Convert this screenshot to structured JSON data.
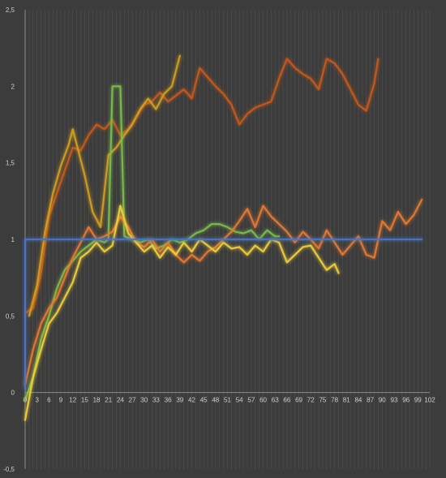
{
  "chart_data": {
    "type": "line",
    "title": "",
    "xlabel": "",
    "ylabel": "",
    "grid": true,
    "legend": "none",
    "xlim": [
      0,
      102
    ],
    "ylim": [
      -0.5,
      2.5
    ],
    "x_ticks": [
      0,
      3,
      6,
      9,
      12,
      15,
      18,
      21,
      24,
      27,
      30,
      33,
      36,
      39,
      42,
      45,
      48,
      51,
      54,
      57,
      60,
      63,
      66,
      69,
      72,
      75,
      78,
      81,
      84,
      87,
      90,
      93,
      96,
      99,
      102
    ],
    "y_ticks": [
      {
        "value": -0.5,
        "label": "-0,5"
      },
      {
        "value": 0,
        "label": "0"
      },
      {
        "value": 0.5,
        "label": "0,5"
      },
      {
        "value": 1,
        "label": "1"
      },
      {
        "value": 1.5,
        "label": "1,5"
      },
      {
        "value": 2,
        "label": "2"
      },
      {
        "value": 2.5,
        "label": "2,5"
      }
    ],
    "series": [
      {
        "color": "#c85a1a",
        "points": [
          [
            0,
            0.52
          ],
          [
            2,
            0.55
          ],
          [
            4,
            0.78
          ],
          [
            6,
            1.15
          ],
          [
            8,
            1.3
          ],
          [
            10,
            1.45
          ],
          [
            12,
            1.6
          ],
          [
            14,
            1.58
          ],
          [
            16,
            1.68
          ],
          [
            18,
            1.75
          ],
          [
            20,
            1.72
          ],
          [
            22,
            1.78
          ],
          [
            24,
            1.68
          ],
          [
            26,
            1.72
          ],
          [
            28,
            1.8
          ],
          [
            30,
            1.88
          ],
          [
            32,
            1.9
          ],
          [
            34,
            1.96
          ],
          [
            36,
            1.9
          ],
          [
            38,
            1.94
          ],
          [
            40,
            1.98
          ],
          [
            42,
            1.92
          ],
          [
            44,
            2.12
          ],
          [
            46,
            2.06
          ],
          [
            48,
            2.0
          ],
          [
            50,
            1.95
          ],
          [
            52,
            1.88
          ],
          [
            54,
            1.75
          ],
          [
            56,
            1.82
          ],
          [
            58,
            1.86
          ],
          [
            60,
            1.88
          ],
          [
            62,
            1.9
          ],
          [
            64,
            2.05
          ],
          [
            66,
            2.18
          ],
          [
            68,
            2.12
          ],
          [
            70,
            2.08
          ],
          [
            72,
            2.05
          ],
          [
            74,
            1.98
          ],
          [
            76,
            2.18
          ],
          [
            78,
            2.15
          ],
          [
            80,
            2.08
          ],
          [
            82,
            1.98
          ],
          [
            84,
            1.88
          ],
          [
            86,
            1.84
          ],
          [
            88,
            2.02
          ],
          [
            89,
            2.18
          ]
        ]
      },
      {
        "color": "#d4a020",
        "points": [
          [
            1,
            0.5
          ],
          [
            3,
            0.7
          ],
          [
            5,
            1.05
          ],
          [
            7,
            1.3
          ],
          [
            9,
            1.48
          ],
          [
            11,
            1.62
          ],
          [
            12,
            1.72
          ],
          [
            13,
            1.62
          ],
          [
            15,
            1.42
          ],
          [
            17,
            1.18
          ],
          [
            19,
            1.08
          ],
          [
            21,
            1.55
          ],
          [
            23,
            1.6
          ],
          [
            25,
            1.68
          ],
          [
            27,
            1.75
          ],
          [
            29,
            1.85
          ],
          [
            31,
            1.92
          ],
          [
            33,
            1.85
          ],
          [
            35,
            1.95
          ],
          [
            37,
            2.0
          ],
          [
            39,
            2.2
          ]
        ]
      },
      {
        "color": "#7bbf4a",
        "points": [
          [
            0,
            -0.05
          ],
          [
            2,
            0.1
          ],
          [
            4,
            0.35
          ],
          [
            6,
            0.5
          ],
          [
            8,
            0.68
          ],
          [
            10,
            0.8
          ],
          [
            12,
            0.86
          ],
          [
            14,
            0.92
          ],
          [
            16,
            0.96
          ],
          [
            18,
            1.0
          ],
          [
            20,
            0.98
          ],
          [
            21,
            1.0
          ],
          [
            22,
            2.0
          ],
          [
            24,
            2.0
          ],
          [
            25,
            1.02
          ],
          [
            27,
            1.0
          ],
          [
            29,
            0.98
          ],
          [
            31,
            1.0
          ],
          [
            33,
            0.94
          ],
          [
            35,
            0.96
          ],
          [
            37,
            1.0
          ],
          [
            39,
            0.98
          ],
          [
            41,
            1.0
          ],
          [
            43,
            1.04
          ],
          [
            45,
            1.06
          ],
          [
            47,
            1.1
          ],
          [
            49,
            1.1
          ],
          [
            51,
            1.08
          ],
          [
            53,
            1.05
          ],
          [
            55,
            1.04
          ],
          [
            57,
            1.06
          ],
          [
            59,
            1.0
          ],
          [
            61,
            1.06
          ],
          [
            63,
            1.02
          ],
          [
            64,
            1.02
          ]
        ]
      },
      {
        "color": "#e87a30",
        "points": [
          [
            0,
            0.05
          ],
          [
            2,
            0.28
          ],
          [
            4,
            0.45
          ],
          [
            6,
            0.55
          ],
          [
            8,
            0.62
          ],
          [
            10,
            0.75
          ],
          [
            12,
            0.88
          ],
          [
            14,
            0.98
          ],
          [
            16,
            1.08
          ],
          [
            18,
            1.0
          ],
          [
            20,
            1.02
          ],
          [
            22,
            1.05
          ],
          [
            24,
            1.15
          ],
          [
            26,
            1.08
          ],
          [
            28,
            0.98
          ],
          [
            30,
            0.95
          ],
          [
            32,
            1.0
          ],
          [
            34,
            0.92
          ],
          [
            36,
            0.98
          ],
          [
            38,
            0.9
          ],
          [
            40,
            0.85
          ],
          [
            42,
            0.9
          ],
          [
            44,
            0.86
          ],
          [
            46,
            0.92
          ],
          [
            48,
            0.95
          ],
          [
            50,
            1.0
          ],
          [
            52,
            1.05
          ],
          [
            54,
            1.12
          ],
          [
            56,
            1.2
          ],
          [
            58,
            1.08
          ],
          [
            60,
            1.22
          ],
          [
            62,
            1.15
          ],
          [
            64,
            1.1
          ],
          [
            66,
            1.05
          ],
          [
            68,
            0.98
          ],
          [
            70,
            1.05
          ],
          [
            72,
            1.0
          ],
          [
            74,
            0.94
          ],
          [
            76,
            1.06
          ],
          [
            78,
            0.98
          ],
          [
            80,
            0.9
          ],
          [
            82,
            0.96
          ],
          [
            84,
            1.02
          ],
          [
            86,
            0.9
          ],
          [
            88,
            0.88
          ],
          [
            90,
            1.12
          ],
          [
            92,
            1.06
          ],
          [
            94,
            1.18
          ],
          [
            96,
            1.1
          ],
          [
            98,
            1.16
          ],
          [
            100,
            1.26
          ]
        ]
      },
      {
        "color": "#f2d03a",
        "points": [
          [
            0,
            -0.18
          ],
          [
            2,
            0.1
          ],
          [
            4,
            0.28
          ],
          [
            6,
            0.45
          ],
          [
            8,
            0.52
          ],
          [
            10,
            0.62
          ],
          [
            12,
            0.72
          ],
          [
            14,
            0.88
          ],
          [
            16,
            0.92
          ],
          [
            18,
            0.98
          ],
          [
            20,
            0.92
          ],
          [
            22,
            0.96
          ],
          [
            24,
            1.22
          ],
          [
            26,
            1.04
          ],
          [
            28,
            0.98
          ],
          [
            30,
            0.92
          ],
          [
            32,
            0.96
          ],
          [
            34,
            0.88
          ],
          [
            36,
            0.95
          ],
          [
            38,
            0.9
          ],
          [
            40,
            0.98
          ],
          [
            42,
            0.92
          ],
          [
            44,
            1.0
          ],
          [
            46,
            0.96
          ],
          [
            48,
            0.92
          ],
          [
            50,
            0.98
          ],
          [
            52,
            0.94
          ],
          [
            54,
            0.95
          ],
          [
            56,
            0.9
          ],
          [
            58,
            0.96
          ],
          [
            60,
            0.92
          ],
          [
            62,
            1.0
          ],
          [
            64,
            0.98
          ],
          [
            66,
            0.85
          ],
          [
            68,
            0.9
          ],
          [
            70,
            0.95
          ],
          [
            72,
            0.96
          ],
          [
            74,
            0.88
          ],
          [
            76,
            0.8
          ],
          [
            78,
            0.84
          ],
          [
            79,
            0.78
          ]
        ]
      },
      {
        "color": "#4a74c4",
        "points": [
          [
            0,
            0.02
          ],
          [
            0,
            1.0
          ],
          [
            1,
            1.0
          ],
          [
            100,
            1.0
          ]
        ]
      }
    ]
  }
}
